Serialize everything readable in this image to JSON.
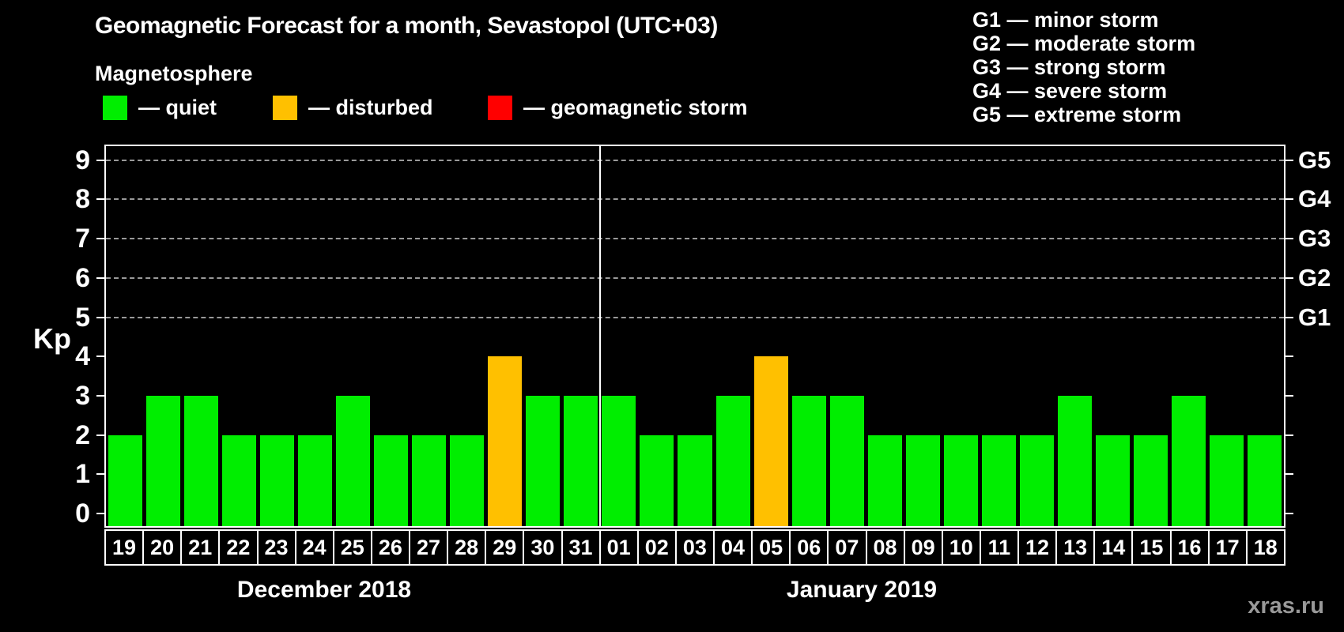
{
  "header": {
    "title": "Geomagnetic Forecast for a month, Sevastopol (UTC+03)",
    "subtitle": "Magnetosphere"
  },
  "legend": {
    "quiet": {
      "label": "— quiet",
      "color": "#00ee00"
    },
    "disturbed": {
      "label": "— disturbed",
      "color": "#ffc000"
    },
    "storm": {
      "label": "— geomagnetic storm",
      "color": "#ff0000"
    }
  },
  "g_scale": {
    "items": [
      {
        "text": "G1 — minor storm"
      },
      {
        "text": "G2 — moderate storm"
      },
      {
        "text": "G3 — strong storm"
      },
      {
        "text": "G4 — severe storm"
      },
      {
        "text": "G5 — extreme storm"
      }
    ]
  },
  "footer": {
    "watermark": "xras.ru"
  },
  "chart_data": {
    "type": "bar",
    "title": "Geomagnetic Forecast for a month, Sevastopol (UTC+03)",
    "subtitle": "Magnetosphere",
    "ylabel": "Kp",
    "ylim": [
      0,
      9.4
    ],
    "yticks": [
      0,
      1,
      2,
      3,
      4,
      5,
      6,
      7,
      8,
      9
    ],
    "gridlines": [
      5,
      6,
      7,
      8,
      9
    ],
    "right_axis": [
      {
        "value": 5,
        "label": "G1"
      },
      {
        "value": 6,
        "label": "G2"
      },
      {
        "value": 7,
        "label": "G3"
      },
      {
        "value": 8,
        "label": "G4"
      },
      {
        "value": 9,
        "label": "G5"
      }
    ],
    "legend_position": "top-left",
    "grid": "dashed-above-5-only",
    "months": [
      {
        "label": "December 2018",
        "days": [
          {
            "day": "19",
            "kp": 2,
            "status": "quiet"
          },
          {
            "day": "20",
            "kp": 3,
            "status": "quiet"
          },
          {
            "day": "21",
            "kp": 3,
            "status": "quiet"
          },
          {
            "day": "22",
            "kp": 2,
            "status": "quiet"
          },
          {
            "day": "23",
            "kp": 2,
            "status": "quiet"
          },
          {
            "day": "24",
            "kp": 2,
            "status": "quiet"
          },
          {
            "day": "25",
            "kp": 3,
            "status": "quiet"
          },
          {
            "day": "26",
            "kp": 2,
            "status": "quiet"
          },
          {
            "day": "27",
            "kp": 2,
            "status": "quiet"
          },
          {
            "day": "28",
            "kp": 2,
            "status": "quiet"
          },
          {
            "day": "29",
            "kp": 4,
            "status": "disturbed"
          },
          {
            "day": "30",
            "kp": 3,
            "status": "quiet"
          },
          {
            "day": "31",
            "kp": 3,
            "status": "quiet"
          }
        ]
      },
      {
        "label": "January 2019",
        "days": [
          {
            "day": "01",
            "kp": 3,
            "status": "quiet"
          },
          {
            "day": "02",
            "kp": 2,
            "status": "quiet"
          },
          {
            "day": "03",
            "kp": 2,
            "status": "quiet"
          },
          {
            "day": "04",
            "kp": 3,
            "status": "quiet"
          },
          {
            "day": "05",
            "kp": 4,
            "status": "disturbed"
          },
          {
            "day": "06",
            "kp": 3,
            "status": "quiet"
          },
          {
            "day": "07",
            "kp": 3,
            "status": "quiet"
          },
          {
            "day": "08",
            "kp": 2,
            "status": "quiet"
          },
          {
            "day": "09",
            "kp": 2,
            "status": "quiet"
          },
          {
            "day": "10",
            "kp": 2,
            "status": "quiet"
          },
          {
            "day": "11",
            "kp": 2,
            "status": "quiet"
          },
          {
            "day": "12",
            "kp": 2,
            "status": "quiet"
          },
          {
            "day": "13",
            "kp": 3,
            "status": "quiet"
          },
          {
            "day": "14",
            "kp": 2,
            "status": "quiet"
          },
          {
            "day": "15",
            "kp": 2,
            "status": "quiet"
          },
          {
            "day": "16",
            "kp": 3,
            "status": "quiet"
          },
          {
            "day": "17",
            "kp": 2,
            "status": "quiet"
          },
          {
            "day": "18",
            "kp": 2,
            "status": "quiet"
          }
        ]
      }
    ]
  }
}
